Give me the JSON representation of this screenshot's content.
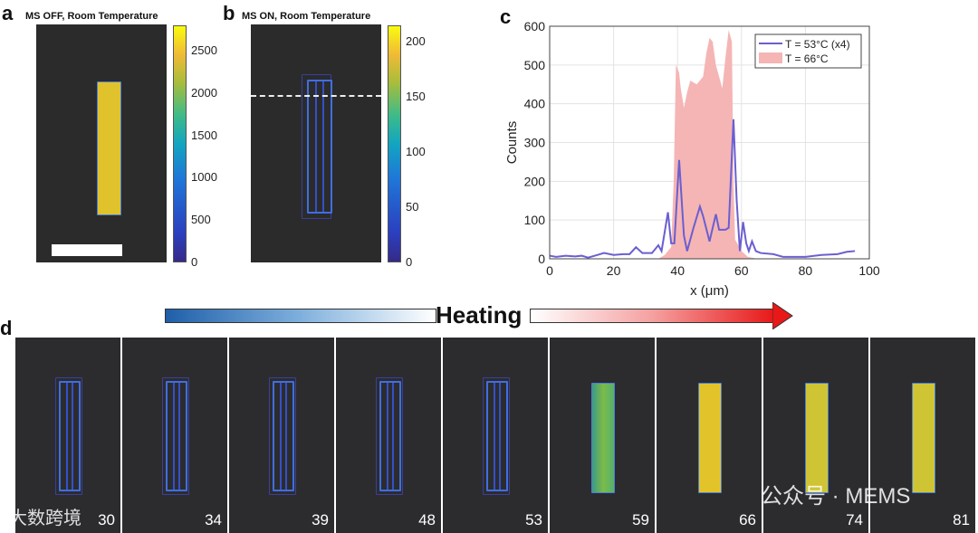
{
  "panels": {
    "a": {
      "label": "a",
      "title": "MS OFF, Room Temperature",
      "colorbar_ticks": [
        "2500",
        "2000",
        "1500",
        "1000",
        "500",
        "0"
      ],
      "colorbar_max": 2800
    },
    "b": {
      "label": "b",
      "title": "MS ON, Room Temperature",
      "colorbar_ticks": [
        "200",
        "150",
        "100",
        "50",
        "0"
      ],
      "colorbar_max": 215
    },
    "c": {
      "label": "c"
    },
    "d": {
      "label": "d",
      "heating_label": "Heating",
      "temperatures": [
        "30",
        "34",
        "39",
        "48",
        "53",
        "59",
        "66",
        "74",
        "81"
      ]
    }
  },
  "chart_data": {
    "type": "line",
    "title": "",
    "xlabel": "x (μm)",
    "ylabel": "Counts",
    "xlim": [
      0,
      100
    ],
    "ylim": [
      0,
      600
    ],
    "xticks": [
      "0",
      "20",
      "40",
      "60",
      "80",
      "100"
    ],
    "yticks": [
      "0",
      "100",
      "200",
      "300",
      "400",
      "500",
      "600"
    ],
    "grid": true,
    "legend_placement": "top-right",
    "series": [
      {
        "name": "T = 53°C (x4)",
        "type": "line",
        "color": "#6a5fd0",
        "x": [
          0,
          2,
          5,
          8,
          10,
          12,
          15,
          17,
          20,
          23,
          25,
          27,
          29,
          32,
          34,
          35,
          37,
          38,
          39,
          40.5,
          42,
          43,
          45,
          47,
          48,
          50,
          52,
          53,
          55,
          56,
          57.5,
          58.5,
          59.5,
          60.5,
          61.5,
          62.3,
          63.3,
          64.5,
          66,
          70,
          73,
          75,
          80,
          85,
          90,
          93,
          95.5
        ],
        "y": [
          8,
          5,
          8,
          6,
          8,
          3,
          10,
          15,
          10,
          12,
          12,
          30,
          15,
          15,
          35,
          20,
          120,
          40,
          40,
          255,
          60,
          20,
          80,
          135,
          110,
          45,
          115,
          75,
          75,
          80,
          360,
          150,
          20,
          95,
          40,
          20,
          45,
          20,
          15,
          12,
          5,
          5,
          5,
          10,
          12,
          18,
          20
        ]
      },
      {
        "name": "T = 66°C",
        "type": "area",
        "color": "#f5b5b5",
        "x": [
          0,
          34,
          36,
          38,
          38.8,
          39.5,
          40.5,
          41,
          42,
          43,
          44,
          46,
          48,
          49,
          50,
          51,
          52,
          53,
          54,
          55,
          56,
          57,
          57.5,
          58,
          60,
          62,
          65,
          95
        ],
        "y": [
          0,
          0,
          10,
          30,
          200,
          500,
          480,
          440,
          390,
          430,
          460,
          450,
          470,
          530,
          570,
          560,
          500,
          470,
          440,
          520,
          590,
          560,
          200,
          50,
          20,
          5,
          0,
          0
        ]
      }
    ]
  },
  "watermarks": {
    "left": "大数跨境",
    "right": "公众号 · MEMS"
  },
  "colors": {
    "image_bg": "#2b2b2c",
    "rod_yellow": "#e8c628",
    "rod_blue": "#3a50d0"
  }
}
